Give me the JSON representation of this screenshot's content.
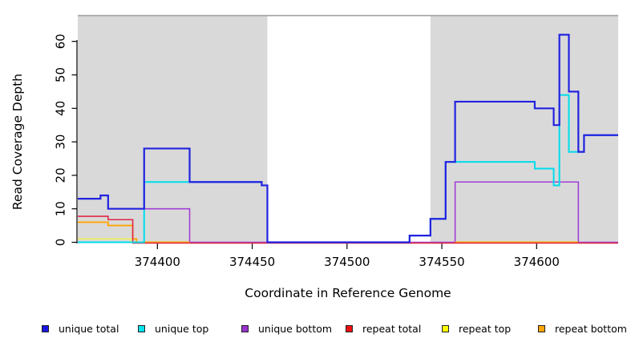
{
  "chart_data": {
    "type": "line",
    "subtype": "step",
    "title": "",
    "xlabel": "Coordinate in Reference Genome",
    "ylabel": "Read Coverage Depth",
    "x_ticks": [
      374400,
      374450,
      374500,
      374550,
      374600
    ],
    "y_ticks": [
      0,
      10,
      20,
      30,
      40,
      50,
      60
    ],
    "x_range": [
      374358,
      374643
    ],
    "y_range": [
      0,
      68
    ],
    "grid": false,
    "legend_position": "bottom",
    "panel_top_border_color": "#999999",
    "background_regions": [
      {
        "name": "left-shaded-region",
        "x1": 374358,
        "x2": 374458,
        "color": "#d9d9d9"
      },
      {
        "name": "right-shaded-region",
        "x1": 374544,
        "x2": 374643,
        "color": "#d9d9d9"
      }
    ],
    "series": [
      {
        "name": "unique bottom",
        "color": "#a03fd4",
        "lw": 1.6,
        "dy": 0,
        "segments": [
          [
            [
              374358,
              13
            ],
            [
              374370,
              14
            ],
            [
              374374,
              10
            ],
            [
              374417,
              0
            ],
            [
              374557,
              18
            ],
            [
              374622,
              0
            ],
            [
              374643,
              0
            ]
          ]
        ]
      },
      {
        "name": "repeat top",
        "color": "#efef55",
        "lw": 1.6,
        "dy": 0,
        "segments": [
          [
            [
              374358,
              1
            ],
            [
              374386,
              0
            ],
            [
              374393,
              0
            ]
          ]
        ]
      },
      {
        "name": "repeat bottom",
        "color": "#ffa500",
        "lw": 1.9,
        "dy": 0,
        "segments": [
          [
            [
              374358,
              6
            ],
            [
              374374,
              5
            ],
            [
              374387,
              1
            ],
            [
              374389,
              0
            ],
            [
              374417,
              0
            ]
          ],
          [
            [
              374557,
              0
            ],
            [
              374622,
              0
            ]
          ]
        ]
      },
      {
        "name": "repeat total",
        "color": "#e02745",
        "lw": 1.6,
        "dy": 1,
        "segments": [
          [
            [
              374358,
              8
            ],
            [
              374374,
              7
            ],
            [
              374387,
              0
            ],
            [
              374643,
              0
            ]
          ]
        ]
      },
      {
        "name": "unique top",
        "color": "#00dcec",
        "lw": 2.0,
        "dy": 0,
        "segments": [
          [
            [
              374358,
              0
            ],
            [
              374393,
              18
            ],
            [
              374455,
              17
            ],
            [
              374458,
              0
            ],
            [
              374533,
              2
            ],
            [
              374544,
              7
            ],
            [
              374552,
              24
            ],
            [
              374599,
              22
            ],
            [
              374609,
              17
            ],
            [
              374612,
              44
            ],
            [
              374617,
              27
            ],
            [
              374625,
              32
            ],
            [
              374643,
              32
            ]
          ]
        ]
      },
      {
        "name": "unique total",
        "color": "#2222e0",
        "lw": 2.2,
        "dy": 0,
        "segments": [
          [
            [
              374358,
              13
            ],
            [
              374370,
              14
            ],
            [
              374374,
              10
            ],
            [
              374393,
              28
            ],
            [
              374417,
              18
            ],
            [
              374455,
              17
            ],
            [
              374458,
              0
            ],
            [
              374533,
              2
            ],
            [
              374544,
              7
            ],
            [
              374552,
              24
            ],
            [
              374557,
              42
            ],
            [
              374599,
              40
            ],
            [
              374609,
              35
            ],
            [
              374612,
              62
            ],
            [
              374617,
              45
            ],
            [
              374622,
              27
            ],
            [
              374625,
              32
            ],
            [
              374643,
              32
            ]
          ]
        ]
      }
    ],
    "legend": [
      {
        "label": "unique total",
        "color": "#1a16e0"
      },
      {
        "label": "unique top",
        "color": "#00e5ee"
      },
      {
        "label": "unique bottom",
        "color": "#9933cc"
      },
      {
        "label": "repeat total",
        "color": "#ee1111"
      },
      {
        "label": "repeat top",
        "color": "#ffff00"
      },
      {
        "label": "repeat bottom",
        "color": "#ffa500"
      }
    ]
  }
}
